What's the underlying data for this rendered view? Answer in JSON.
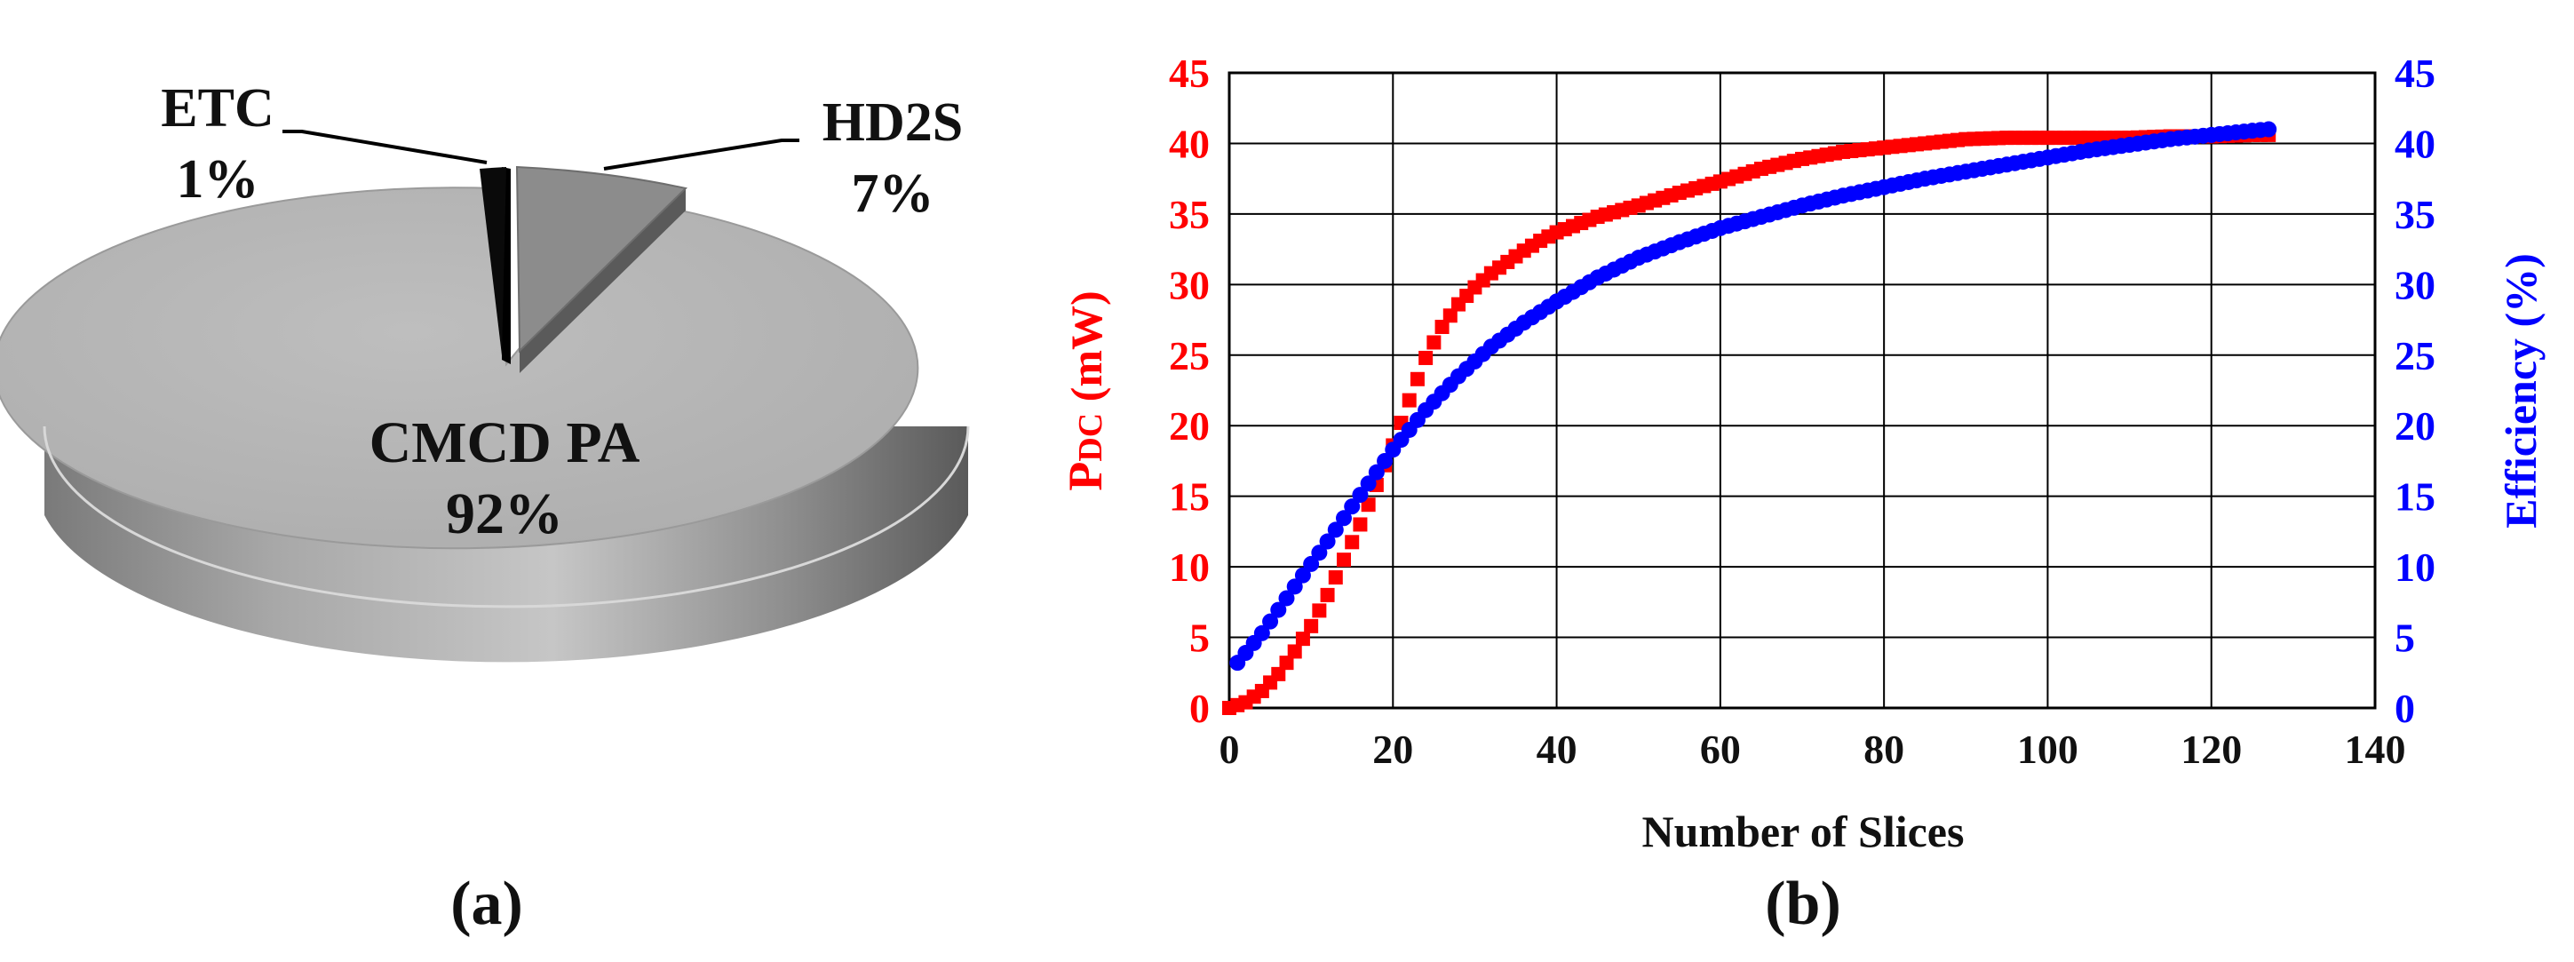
{
  "panel_labels": {
    "a": "(a)",
    "b": "(b)"
  },
  "chart_data": [
    {
      "type": "pie",
      "style": "3d-exploded",
      "slices": [
        {
          "label": "CMCD PA",
          "value": 92,
          "value_label": "92%",
          "color": "#b4b4b4"
        },
        {
          "label": "HD2S",
          "value": 7,
          "value_label": "7%",
          "color": "#8c8c8c"
        },
        {
          "label": "ETC",
          "value": 1,
          "value_label": "1%",
          "color": "#0a0a0a"
        }
      ]
    },
    {
      "type": "scatter",
      "xlabel": "Number of Slices",
      "xlim": [
        0,
        140
      ],
      "xticks": [
        "0",
        "20",
        "40",
        "60",
        "80",
        "100",
        "120",
        "140"
      ],
      "grid": true,
      "y_left": {
        "label_main": "P",
        "label_sub": "DC",
        "label_unit": " (mW)",
        "lim": [
          0,
          45
        ],
        "ticks": [
          "0",
          "5",
          "10",
          "15",
          "20",
          "25",
          "30",
          "35",
          "40",
          "45"
        ],
        "color": "#ff0000"
      },
      "y_right": {
        "label": "Efficiency (%)",
        "lim": [
          0,
          45
        ],
        "ticks": [
          "0",
          "5",
          "10",
          "15",
          "20",
          "25",
          "30",
          "35",
          "40",
          "45"
        ],
        "color": "#0000ff"
      },
      "series": [
        {
          "axis": "left",
          "marker": "square",
          "color": "#ff0000",
          "points": [
            [
              0,
              0
            ],
            [
              2,
              0.4
            ],
            [
              4,
              1.2
            ],
            [
              6,
              2.4
            ],
            [
              8,
              4
            ],
            [
              10,
              5.8
            ],
            [
              12,
              8
            ],
            [
              14,
              10.5
            ],
            [
              16,
              13
            ],
            [
              18,
              15.8
            ],
            [
              20,
              18.6
            ],
            [
              22,
              21.8
            ],
            [
              24,
              24.8
            ],
            [
              26,
              27
            ],
            [
              28,
              28.6
            ],
            [
              30,
              29.8
            ],
            [
              32,
              30.8
            ],
            [
              34,
              31.6
            ],
            [
              36,
              32.4
            ],
            [
              38,
              33.1
            ],
            [
              40,
              33.7
            ],
            [
              45,
              34.8
            ],
            [
              50,
              35.6
            ],
            [
              55,
              36.5
            ],
            [
              60,
              37.3
            ],
            [
              65,
              38.2
            ],
            [
              70,
              38.9
            ],
            [
              75,
              39.4
            ],
            [
              80,
              39.7
            ],
            [
              85,
              40
            ],
            [
              90,
              40.3
            ],
            [
              95,
              40.4
            ],
            [
              100,
              40.4
            ],
            [
              105,
              40.4
            ],
            [
              110,
              40.4
            ],
            [
              115,
              40.5
            ],
            [
              120,
              40.5
            ],
            [
              125,
              40.6
            ],
            [
              127,
              40.6
            ]
          ]
        },
        {
          "axis": "right",
          "marker": "circle",
          "color": "#0000ff",
          "points": [
            [
              1,
              3.2
            ],
            [
              4,
              5.3
            ],
            [
              8,
              8.6
            ],
            [
              12,
              11.8
            ],
            [
              16,
              15.1
            ],
            [
              20,
              18.3
            ],
            [
              24,
              21.1
            ],
            [
              28,
              23.5
            ],
            [
              32,
              25.6
            ],
            [
              36,
              27.3
            ],
            [
              40,
              28.8
            ],
            [
              45,
              30.5
            ],
            [
              50,
              31.9
            ],
            [
              55,
              33
            ],
            [
              60,
              34
            ],
            [
              65,
              34.8
            ],
            [
              70,
              35.6
            ],
            [
              75,
              36.3
            ],
            [
              80,
              36.9
            ],
            [
              85,
              37.5
            ],
            [
              90,
              38
            ],
            [
              95,
              38.5
            ],
            [
              100,
              39
            ],
            [
              105,
              39.5
            ],
            [
              110,
              39.9
            ],
            [
              115,
              40.3
            ],
            [
              120,
              40.6
            ],
            [
              125,
              40.9
            ],
            [
              127,
              41
            ]
          ]
        }
      ]
    }
  ]
}
